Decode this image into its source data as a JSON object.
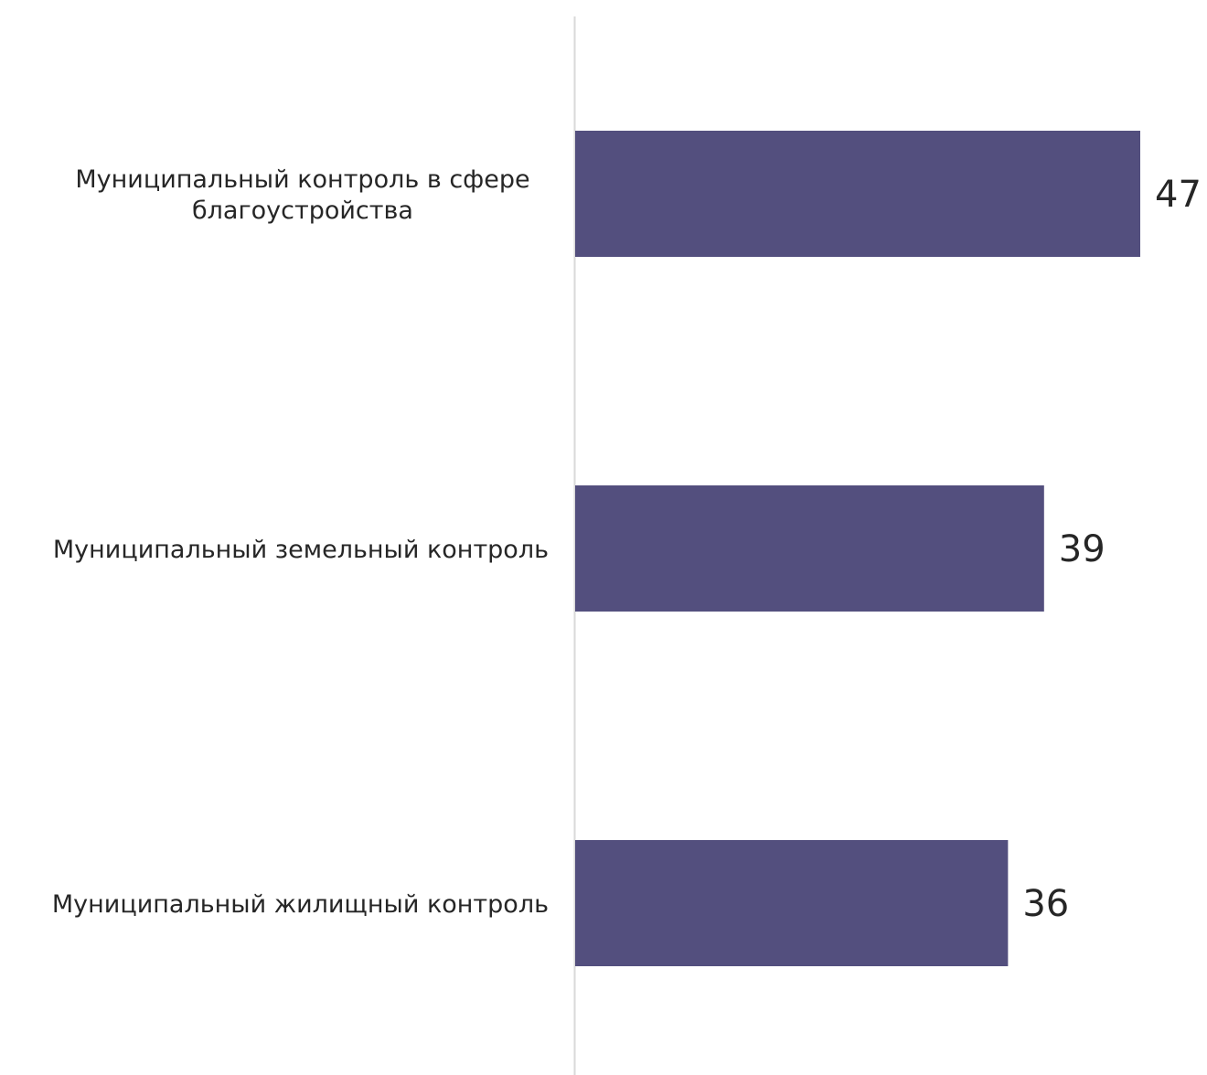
{
  "chart_data": {
    "type": "bar",
    "orientation": "horizontal",
    "categories": [
      "Муниципальный контроль в сфере благоустройства",
      "Муниципальный земельный контроль",
      "Муниципальный жилищный контроль"
    ],
    "values": [
      47,
      39,
      36
    ],
    "value_labels": [
      "47",
      "39",
      "36"
    ],
    "xlim": [
      0,
      47
    ],
    "grid": false,
    "legend": "none",
    "colors": {
      "bar": "#534f7e",
      "axis": "#d9d9d9",
      "text": "#262626"
    }
  }
}
